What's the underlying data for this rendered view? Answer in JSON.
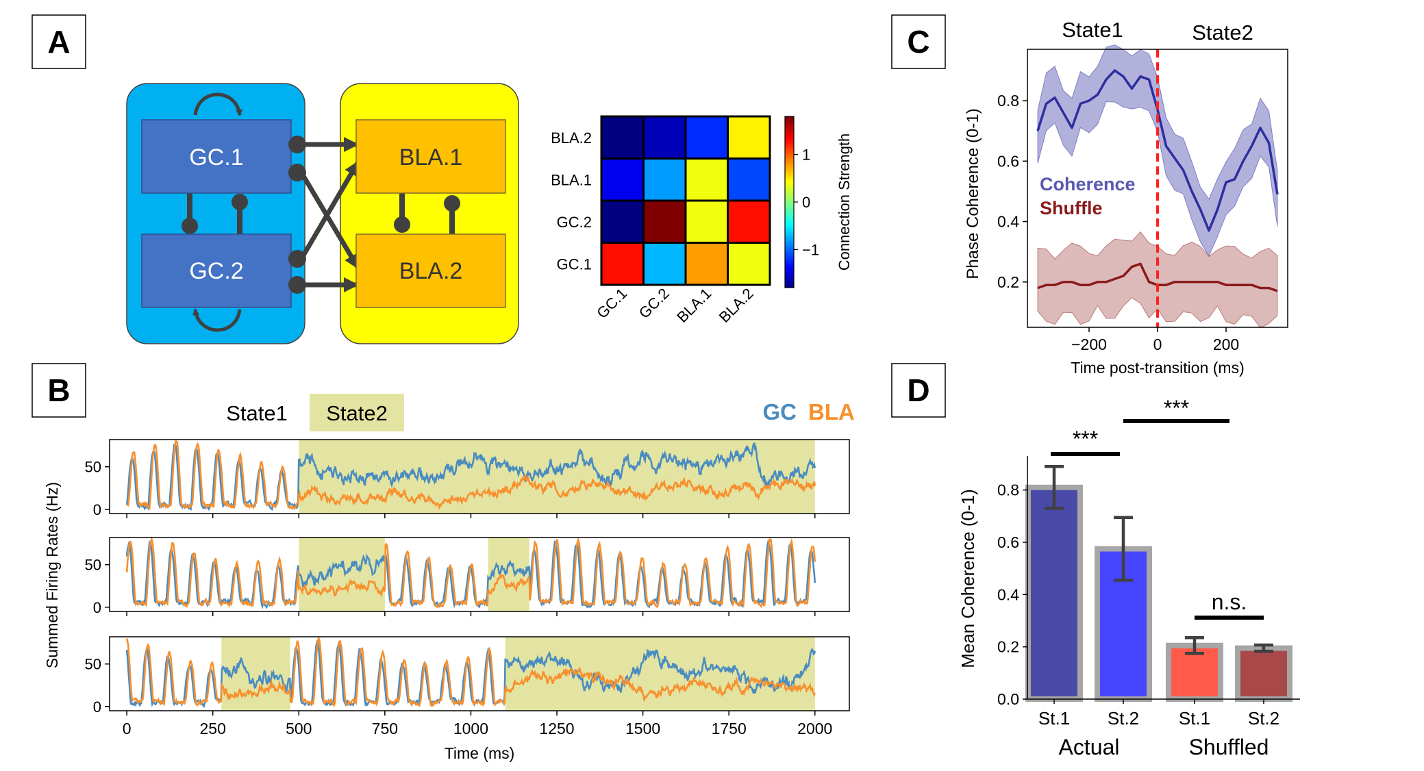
{
  "panel_labels": {
    "a": "A",
    "b": "B",
    "c": "C",
    "d": "D"
  },
  "colors": {
    "gc_box": "#00B0F0",
    "bla_box": "#FFFF00",
    "gc_node": "#4472C4",
    "bla_node": "#FFC000",
    "gc_trace": "#4A8CC0",
    "bla_trace": "#F7902E",
    "state_shade": "#E4E4A2",
    "coherence": "#2E2EA0",
    "shuffle": "#8B1A1A",
    "transition": "#FF2020"
  },
  "chart_data": [
    {
      "type": "diagram",
      "panel": "A",
      "nodes": [
        "GC.1",
        "GC.2",
        "BLA.1",
        "BLA.2"
      ]
    },
    {
      "type": "heatmap",
      "panel": "A",
      "rows": [
        "BLA.2",
        "BLA.1",
        "GC.2",
        "GC.1"
      ],
      "cols": [
        "GC.1",
        "GC.2",
        "BLA.1",
        "BLA.2"
      ],
      "values": [
        [
          -1.8,
          -1.6,
          -1.2,
          0.5
        ],
        [
          -1.4,
          -0.8,
          0.4,
          -1.1
        ],
        [
          -1.8,
          1.8,
          0.4,
          1.3
        ],
        [
          1.3,
          -0.7,
          0.8,
          0.4
        ]
      ],
      "zlim": [
        -1.8,
        1.8
      ],
      "colorbar_ticks": [
        -1,
        0,
        1
      ],
      "colorbar_label": "Connection Strength"
    },
    {
      "type": "line",
      "panel": "B",
      "state_labels": [
        "State1",
        "State2"
      ],
      "legend": [
        "GC",
        "BLA"
      ],
      "xlabel": "Time (ms)",
      "ylabel": "Summed Firing Rates (Hz)",
      "xlim": [
        -50,
        2100
      ],
      "ylim": [
        -5,
        82
      ],
      "x_ticks": [
        0,
        250,
        500,
        750,
        1000,
        1250,
        1500,
        1750,
        2000
      ],
      "y_ticks": [
        0,
        50
      ],
      "trials": [
        {
          "state2_intervals": [
            [
              500,
              2000
            ]
          ],
          "gc_state2": 55,
          "bla_state2": 22
        },
        {
          "state2_intervals": [
            [
              500,
              750
            ],
            [
              1050,
              1170
            ]
          ],
          "gc_state2": 50,
          "bla_state2": 25
        },
        {
          "state2_intervals": [
            [
              275,
              475
            ],
            [
              1100,
              2000
            ]
          ],
          "gc_state2": 55,
          "bla_state2": 25
        }
      ]
    },
    {
      "type": "line",
      "panel": "C",
      "state_labels": [
        "State1",
        "State2"
      ],
      "xlabel": "Time post-transition (ms)",
      "ylabel": "Phase Coherence (0-1)",
      "xlim": [
        -380,
        380
      ],
      "ylim": [
        0.05,
        0.97
      ],
      "x_ticks": [
        -200,
        0,
        200
      ],
      "y_ticks": [
        0.2,
        0.4,
        0.6,
        0.8
      ],
      "series": [
        {
          "name": "Coherence",
          "x": [
            -350,
            -325,
            -300,
            -275,
            -250,
            -225,
            -200,
            -175,
            -150,
            -125,
            -100,
            -75,
            -50,
            -25,
            0,
            25,
            50,
            75,
            100,
            125,
            150,
            175,
            200,
            225,
            250,
            275,
            300,
            325,
            350
          ],
          "y": [
            0.7,
            0.79,
            0.81,
            0.76,
            0.71,
            0.79,
            0.8,
            0.82,
            0.87,
            0.9,
            0.88,
            0.84,
            0.88,
            0.87,
            0.77,
            0.65,
            0.61,
            0.57,
            0.5,
            0.44,
            0.37,
            0.44,
            0.53,
            0.54,
            0.6,
            0.65,
            0.71,
            0.66,
            0.49
          ],
          "band": 0.09
        },
        {
          "name": "Shuffle",
          "x": [
            -350,
            -325,
            -300,
            -275,
            -250,
            -225,
            -200,
            -175,
            -150,
            -125,
            -100,
            -75,
            -50,
            -25,
            0,
            25,
            50,
            75,
            100,
            125,
            150,
            175,
            200,
            225,
            250,
            275,
            300,
            325,
            350
          ],
          "y": [
            0.18,
            0.19,
            0.19,
            0.2,
            0.2,
            0.19,
            0.19,
            0.2,
            0.2,
            0.21,
            0.22,
            0.25,
            0.26,
            0.2,
            0.19,
            0.19,
            0.2,
            0.2,
            0.2,
            0.2,
            0.2,
            0.2,
            0.19,
            0.19,
            0.19,
            0.19,
            0.18,
            0.18,
            0.17
          ],
          "band": 0.11
        }
      ],
      "transition_x": 0
    },
    {
      "type": "bar",
      "panel": "D",
      "categories": [
        "St.1",
        "St.2",
        "St.1",
        "St.2"
      ],
      "groups": [
        "Actual",
        "Shuffled"
      ],
      "values": [
        0.81,
        0.575,
        0.205,
        0.195
      ],
      "errors": [
        0.08,
        0.12,
        0.03,
        0.012
      ],
      "bar_colors": [
        "#4A4AA8",
        "#4646FF",
        "#FF5A4A",
        "#A84848"
      ],
      "ylabel": "Mean Coherence (0-1)",
      "ylim": [
        0,
        0.93
      ],
      "y_ticks": [
        0.0,
        0.2,
        0.4,
        0.6,
        0.8
      ],
      "significance": [
        {
          "from": 0,
          "to": 1,
          "label": "***"
        },
        {
          "from": 1,
          "to": 3,
          "label": "***"
        },
        {
          "from": 2,
          "to": 3,
          "label": "n.s."
        }
      ]
    }
  ]
}
